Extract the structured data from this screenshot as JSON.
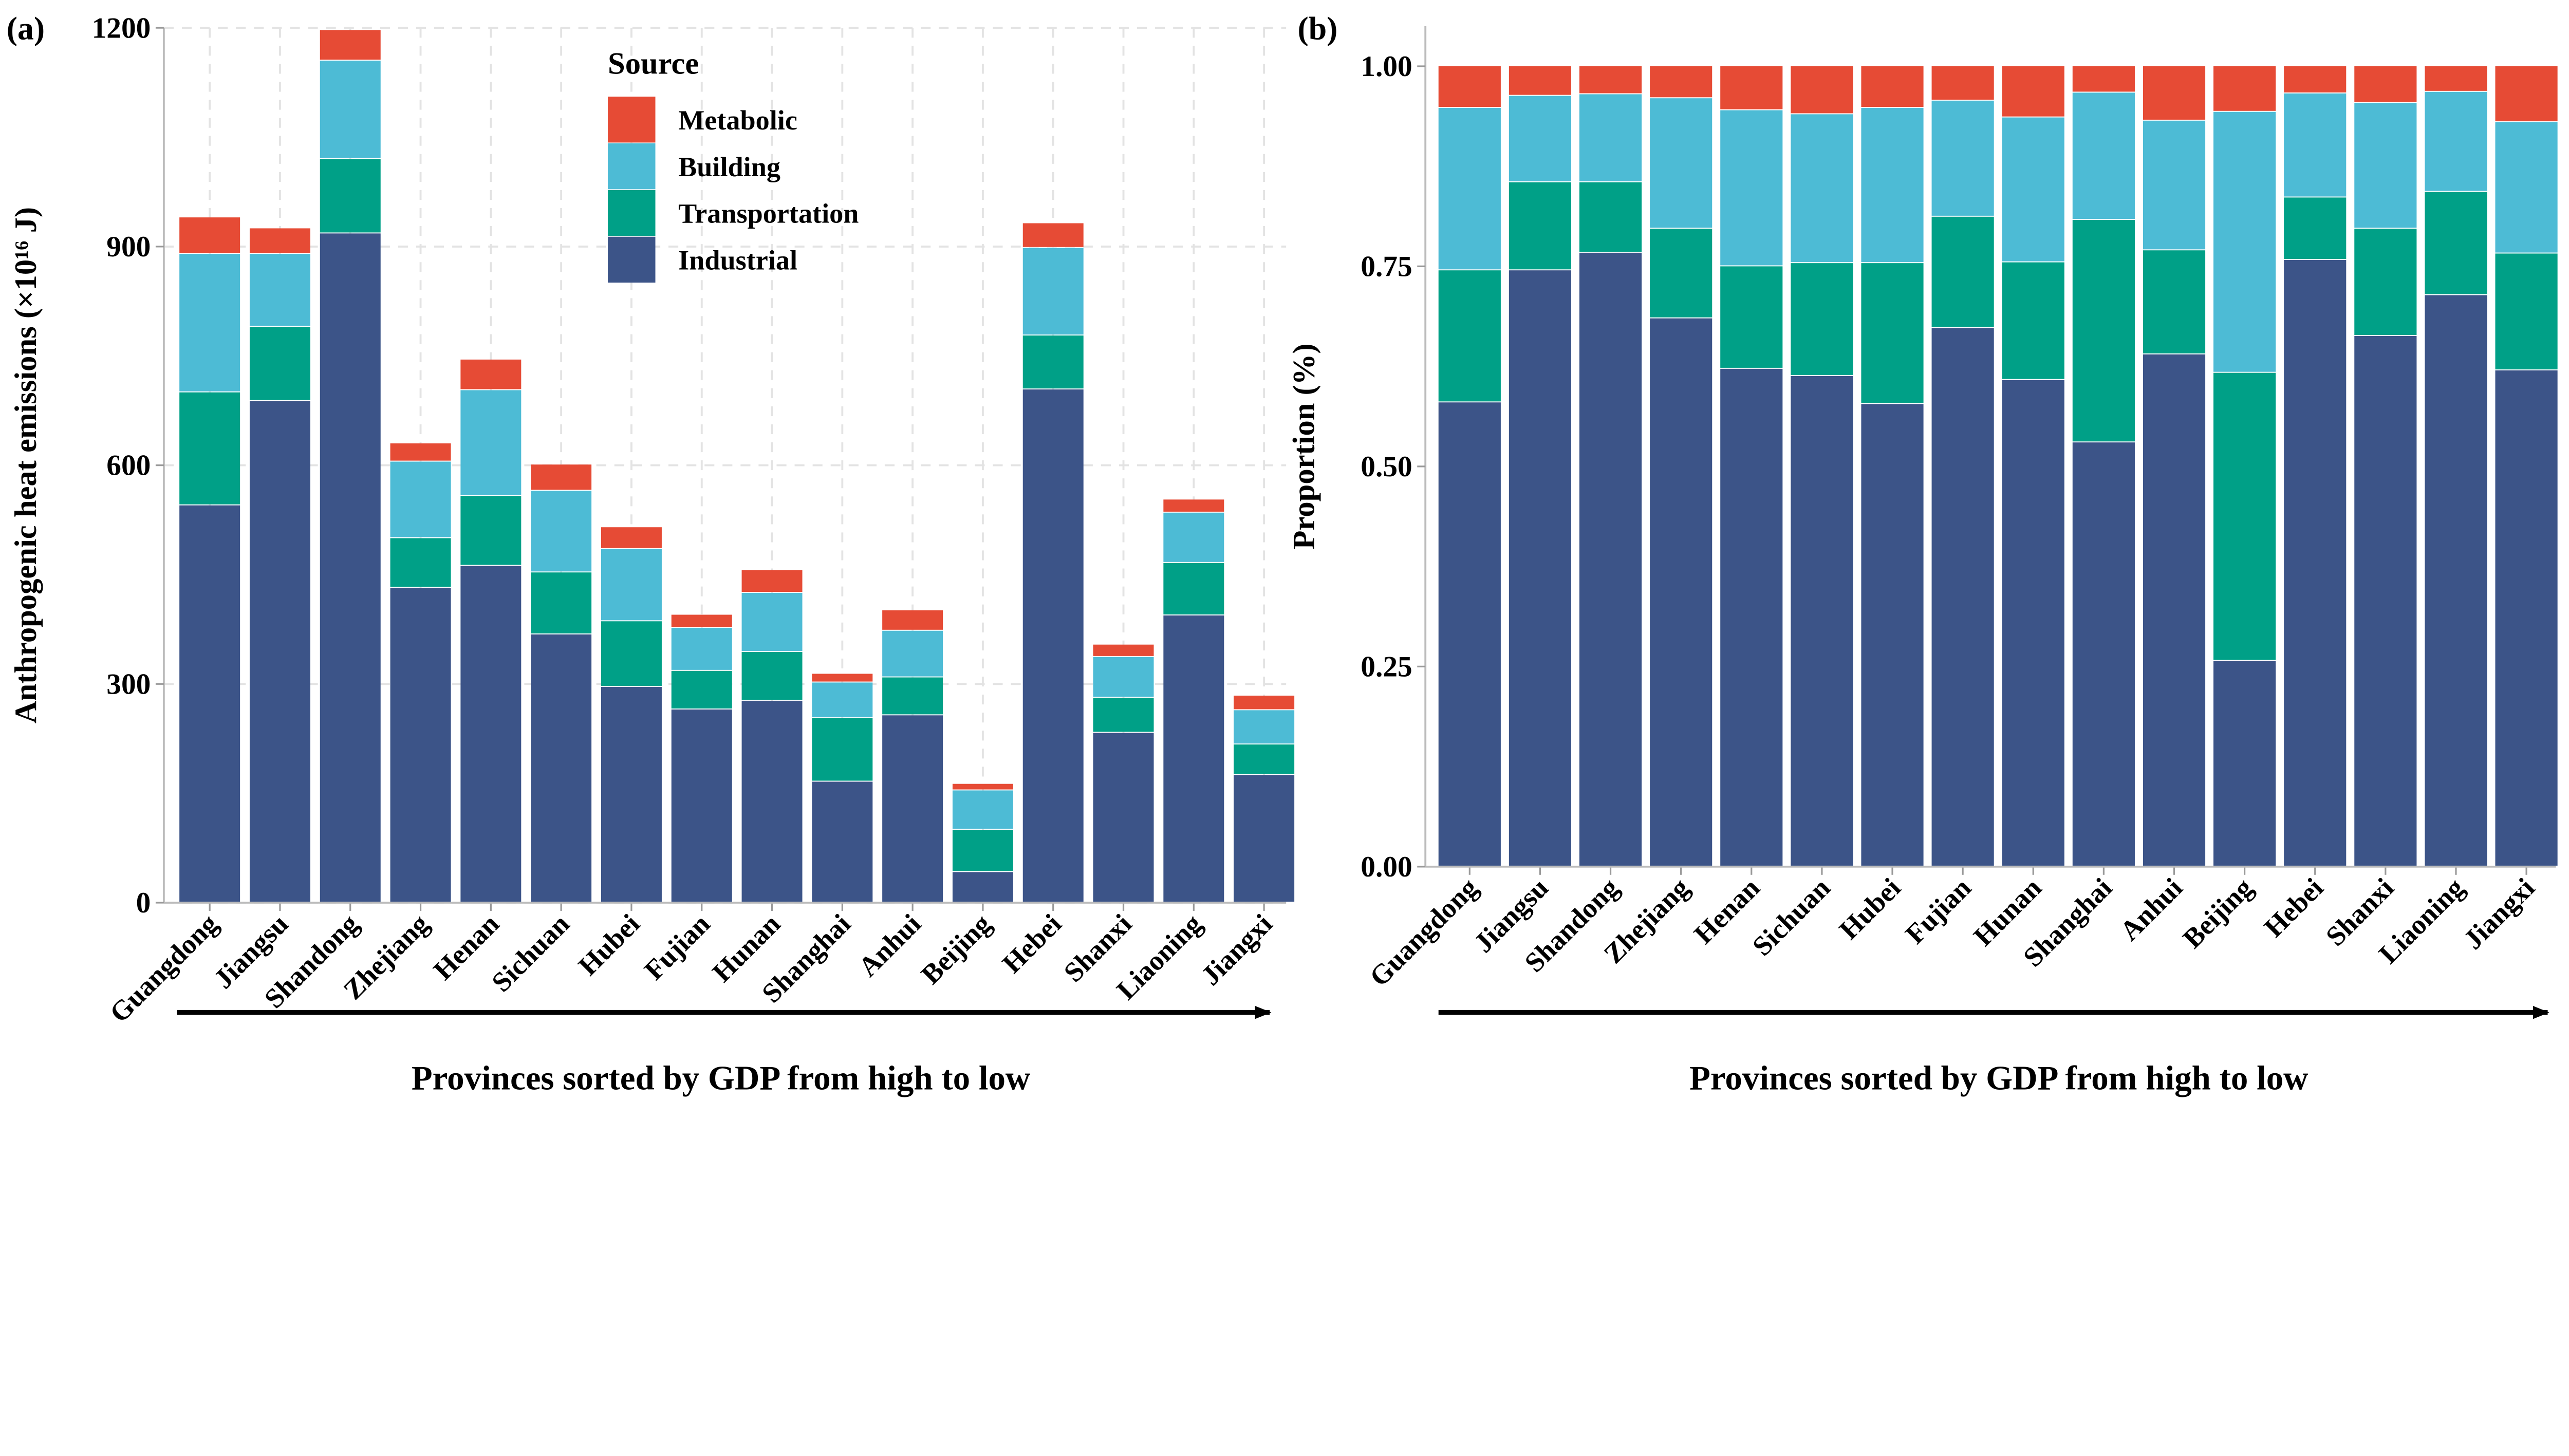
{
  "colors": {
    "Metabolic": "#E64B35",
    "Building": "#4DBBD5",
    "Transportation": "#00A087",
    "Industrial": "#3C5488"
  },
  "legend": {
    "title": "Source",
    "entries": [
      "Metabolic",
      "Building",
      "Transportation",
      "Industrial"
    ]
  },
  "chart_data": [
    {
      "panel": "(a)",
      "type": "bar",
      "stacked": true,
      "categories": [
        "Guangdong",
        "Jiangsu",
        "Shandong",
        "Zhejiang",
        "Henan",
        "Sichuan",
        "Hubei",
        "Fujian",
        "Hunan",
        "Shanghai",
        "Anhui",
        "Beijing",
        "Hebei",
        "Shanxi",
        "Liaoning",
        "Jiangxi"
      ],
      "series": [
        {
          "name": "Industrial",
          "values": [
            545,
            688,
            918,
            432,
            462,
            368,
            296,
            265,
            277,
            166,
            257,
            42,
            704,
            233,
            394,
            175
          ]
        },
        {
          "name": "Transportation",
          "values": [
            155,
            102,
            102,
            68,
            96,
            85,
            90,
            53,
            67,
            87,
            52,
            58,
            74,
            48,
            72,
            42
          ]
        },
        {
          "name": "Building",
          "values": [
            190,
            100,
            135,
            105,
            145,
            112,
            99,
            59,
            81,
            49,
            64,
            54,
            120,
            56,
            69,
            47
          ]
        },
        {
          "name": "Metabolic",
          "values": [
            50,
            35,
            42,
            25,
            42,
            36,
            30,
            18,
            31,
            12,
            28,
            9,
            34,
            17,
            18,
            20
          ]
        }
      ],
      "ylabel": "Anthropogenic heat emissions (×10¹⁶ J)",
      "xlabel": "Provinces sorted by GDP from high to low",
      "yticks": [
        "0",
        "300",
        "600",
        "900",
        "1200"
      ],
      "ylim": [
        0,
        1200
      ],
      "grid": true,
      "legend_placement": "top-center"
    },
    {
      "panel": "(b)",
      "type": "bar",
      "stacked": true,
      "categories": [
        "Guangdong",
        "Jiangsu",
        "Shandong",
        "Zhejiang",
        "Henan",
        "Sichuan",
        "Hubei",
        "Fujian",
        "Hunan",
        "Shanghai",
        "Anhui",
        "Beijing",
        "Hebei",
        "Shanxi",
        "Liaoning",
        "Jiangxi"
      ],
      "series": [
        {
          "name": "Industrial",
          "values": [
            0.58,
            0.745,
            0.767,
            0.685,
            0.622,
            0.613,
            0.578,
            0.673,
            0.608,
            0.53,
            0.64,
            0.257,
            0.758,
            0.663,
            0.714,
            0.62
          ]
        },
        {
          "name": "Transportation",
          "values": [
            0.165,
            0.11,
            0.088,
            0.112,
            0.128,
            0.141,
            0.176,
            0.139,
            0.147,
            0.278,
            0.13,
            0.36,
            0.078,
            0.134,
            0.129,
            0.146
          ]
        },
        {
          "name": "Building",
          "values": [
            0.203,
            0.108,
            0.11,
            0.163,
            0.195,
            0.186,
            0.194,
            0.145,
            0.181,
            0.159,
            0.162,
            0.326,
            0.13,
            0.157,
            0.125,
            0.164
          ]
        },
        {
          "name": "Metabolic",
          "values": [
            0.052,
            0.037,
            0.035,
            0.04,
            0.055,
            0.06,
            0.052,
            0.043,
            0.064,
            0.033,
            0.068,
            0.057,
            0.034,
            0.046,
            0.032,
            0.07
          ]
        }
      ],
      "ylabel": "Proportion (%)",
      "xlabel": "Provinces sorted by GDP from high to low",
      "yticks": [
        "0.00",
        "0.25",
        "0.50",
        "0.75",
        "1.00"
      ],
      "ylim": [
        0,
        1.05
      ],
      "grid": false
    }
  ]
}
